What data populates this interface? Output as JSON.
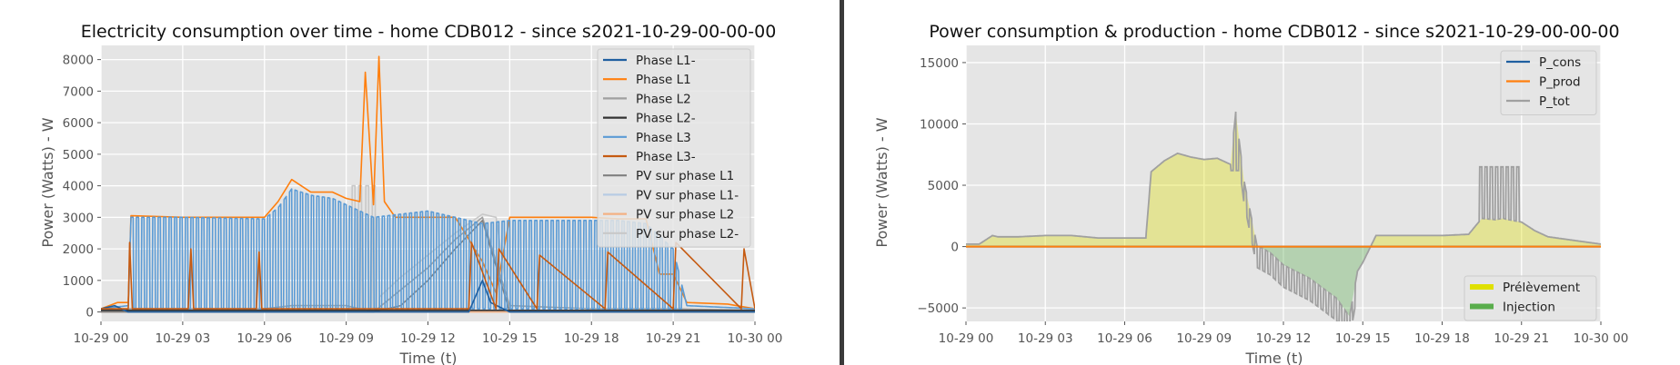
{
  "colors": {
    "background": "#ffffff",
    "plot_bg": "#e5e5e5",
    "grid": "#ffffff",
    "separator": "#3a3a3a",
    "tick_text": "#555555"
  },
  "chart_data": [
    {
      "type": "line",
      "title": "Electricity consumption over time - home CDB012 - since s2021-10-29-00-00-00",
      "xlabel": "Time (t)",
      "ylabel": "Power (Watts) - W",
      "xlim": [
        0,
        24
      ],
      "ylim": [
        -300,
        8450
      ],
      "x_ticks": [
        0,
        3,
        6,
        9,
        12,
        15,
        18,
        21,
        24
      ],
      "x_tick_labels": [
        "10-29 00",
        "10-29 03",
        "10-29 06",
        "10-29 09",
        "10-29 12",
        "10-29 15",
        "10-29 18",
        "10-29 21",
        "10-30 00"
      ],
      "y_ticks": [
        0,
        1000,
        2000,
        3000,
        4000,
        5000,
        6000,
        7000,
        8000
      ],
      "grid": true,
      "legend_position": "upper-right",
      "series": [
        {
          "name": "Phase L1-",
          "color": "#1f5fa0",
          "x": [
            0,
            0.5,
            1,
            6,
            7,
            13.5,
            14,
            14.3,
            15,
            24
          ],
          "y": [
            100,
            200,
            0,
            0,
            0,
            0,
            1000,
            300,
            0,
            0
          ]
        },
        {
          "name": "Phase L1",
          "color": "#ff7f0e",
          "x": [
            0,
            0.6,
            1,
            1.1,
            3,
            6,
            6.5,
            7,
            7.7,
            8.5,
            9,
            9.5,
            9.7,
            10,
            10.2,
            10.4,
            10.8,
            13,
            14,
            14.5,
            15,
            18,
            19,
            20,
            20.5,
            21,
            21.5,
            23,
            24
          ],
          "y": [
            100,
            300,
            300,
            3050,
            3000,
            3000,
            3500,
            4200,
            3800,
            3800,
            3600,
            3500,
            7600,
            3400,
            8100,
            3500,
            3000,
            3000,
            1600,
            600,
            3000,
            3000,
            2950,
            2950,
            1200,
            1200,
            300,
            250,
            100
          ]
        },
        {
          "name": "Phase L2",
          "color": "#a0a0a0",
          "x": [
            0,
            1,
            6,
            7,
            8,
            9,
            10,
            12,
            13,
            14,
            15,
            18,
            21,
            24
          ],
          "y": [
            50,
            100,
            100,
            200,
            200,
            200,
            0,
            1400,
            2300,
            3000,
            200,
            100,
            100,
            50
          ]
        },
        {
          "name": "Phase L2-",
          "color": "#333333",
          "x": [
            0,
            24
          ],
          "y": [
            50,
            50
          ]
        },
        {
          "name": "Phase L3",
          "color": "#5b9bd5",
          "x": [
            0,
            1,
            1.1,
            3,
            6,
            6.5,
            7,
            7.7,
            8.5,
            9,
            10,
            12,
            13,
            14,
            15,
            18,
            19,
            20,
            21,
            21.5,
            24
          ],
          "y": [
            100,
            200,
            3000,
            3000,
            2950,
            3300,
            3900,
            3700,
            3600,
            3400,
            3000,
            3200,
            3000,
            2800,
            2900,
            2900,
            2900,
            2800,
            2000,
            200,
            100
          ]
        },
        {
          "name": "Phase L3-",
          "color": "#c55a11",
          "x": [
            0,
            1,
            1.05,
            1.15,
            3.2,
            3.3,
            3.4,
            5.7,
            5.8,
            5.9,
            13.5,
            13.6,
            14.5,
            14.6,
            16,
            16.1,
            18.5,
            18.6,
            21,
            21.1,
            23.5,
            23.6,
            24
          ],
          "y": [
            100,
            100,
            2200,
            100,
            100,
            2000,
            100,
            100,
            1900,
            100,
            100,
            2200,
            100,
            2000,
            100,
            1800,
            100,
            1900,
            100,
            2200,
            100,
            2000,
            100
          ]
        },
        {
          "name": "PV sur phase L1",
          "color": "#808080",
          "x": [
            0,
            9,
            10,
            11,
            12,
            13,
            14,
            15,
            16,
            24
          ],
          "y": [
            0,
            0,
            0,
            200,
            1000,
            2000,
            2900,
            0,
            0,
            0
          ]
        },
        {
          "name": "PV sur phase L1-",
          "color": "#b8cce4",
          "x": [
            0,
            24
          ],
          "y": [
            0,
            0
          ]
        },
        {
          "name": "PV sur phase L2",
          "color": "#f4b183",
          "x": [
            0,
            24
          ],
          "y": [
            0,
            0
          ]
        },
        {
          "name": "PV sur phase L2-",
          "color": "#c8c8c8",
          "x": [
            0,
            9,
            10,
            11,
            12,
            13,
            14,
            14.5,
            15,
            24
          ],
          "y": [
            0,
            0,
            300,
            1100,
            1800,
            2500,
            3100,
            3000,
            0,
            0
          ]
        }
      ],
      "switching_series": {
        "phase_l3": {
          "x_range": [
            1.1,
            21.3
          ],
          "period_h": 0.2,
          "low": 100
        },
        "pv_l2m": {
          "x_range": [
            9.2,
            10.2
          ],
          "period_h": 0.25,
          "low": 0
        }
      }
    },
    {
      "type": "area",
      "title": "Power consumption & production - home CDB012 - since s2021-10-29-00-00-00",
      "xlabel": "Time (t)",
      "ylabel": "Power (Watts) - W",
      "xlim": [
        0,
        24
      ],
      "ylim": [
        -6100,
        16400
      ],
      "x_ticks": [
        0,
        3,
        6,
        9,
        12,
        15,
        18,
        21,
        24
      ],
      "x_tick_labels": [
        "10-29 00",
        "10-29 03",
        "10-29 06",
        "10-29 09",
        "10-29 12",
        "10-29 15",
        "10-29 18",
        "10-29 21",
        "10-30 00"
      ],
      "y_ticks": [
        -5000,
        0,
        5000,
        10000,
        15000
      ],
      "y_tick_labels": [
        "−5000",
        "0",
        "5000",
        "10000",
        "15000"
      ],
      "grid": true,
      "legend_position": "upper-right",
      "legend2_position": "lower-right",
      "series": [
        {
          "name": "P_cons",
          "color": "#1f5fa0",
          "x": [
            0,
            24
          ],
          "y": [
            0,
            0
          ]
        },
        {
          "name": "P_prod",
          "color": "#ff7f0e",
          "x": [
            0,
            24
          ],
          "y": [
            0,
            0
          ]
        },
        {
          "name": "P_tot",
          "color": "#a0a0a0",
          "x": [
            0,
            0.5,
            1,
            1.2,
            2,
            3,
            4,
            5,
            6,
            6.8,
            7,
            7.5,
            8,
            8.5,
            9,
            9.5,
            10,
            10.2,
            10.5,
            11,
            11.5,
            12,
            13,
            14,
            14.5,
            14.8,
            15,
            15.5,
            16,
            17,
            17.5,
            18,
            19,
            19.5,
            20,
            20.3,
            20.5,
            21,
            21.5,
            22,
            23,
            24
          ],
          "y": [
            200,
            200,
            900,
            800,
            800,
            900,
            900,
            700,
            700,
            700,
            6100,
            7000,
            7600,
            7300,
            7100,
            7200,
            6700,
            11000,
            5500,
            100,
            -500,
            -1500,
            -2600,
            -4200,
            -5700,
            -2000,
            -1300,
            900,
            900,
            900,
            900,
            900,
            1000,
            2300,
            2200,
            2300,
            2200,
            2000,
            1300,
            800,
            500,
            200
          ]
        }
      ],
      "area_legend": [
        {
          "name": "Prélèvement",
          "color": "#dfe000"
        },
        {
          "name": "Injection",
          "color": "#59ad4c"
        }
      ],
      "switching_series": {
        "p_tot": {
          "x_range": [
            1.2,
            21.2
          ],
          "period_h": 0.2,
          "skip": [
            [
              6.8,
              9.9
            ]
          ]
        }
      }
    }
  ]
}
